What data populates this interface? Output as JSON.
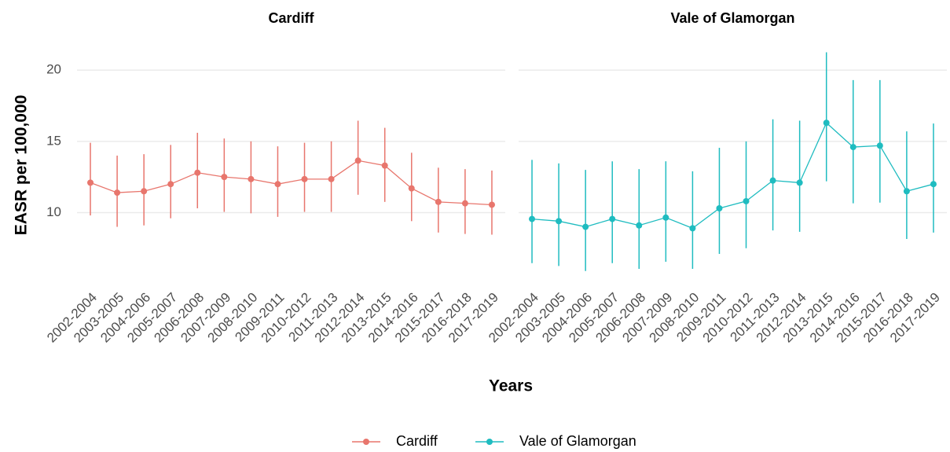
{
  "chart_data": {
    "type": "line",
    "xlabel": "Years",
    "ylabel": "EASR per 100,000",
    "categories": [
      "2002-2004",
      "2003-2005",
      "2004-2006",
      "2005-2007",
      "2006-2008",
      "2007-2009",
      "2008-2010",
      "2009-2011",
      "2010-2012",
      "2011-2013",
      "2012-2014",
      "2013-2015",
      "2014-2016",
      "2015-2017",
      "2016-2018",
      "2017-2019"
    ],
    "ylim": [
      5.5,
      21.5
    ],
    "yticks": [
      10,
      15,
      20
    ],
    "grid": true,
    "legend": "bottom",
    "series": [
      {
        "name": "Cardiff",
        "color": "#e8766d",
        "values": [
          12.1,
          11.4,
          11.5,
          12.0,
          12.8,
          12.5,
          12.35,
          12.0,
          12.35,
          12.35,
          13.65,
          13.3,
          11.7,
          10.75,
          10.65,
          10.55
        ],
        "lower": [
          9.8,
          9.0,
          9.1,
          9.6,
          10.3,
          10.05,
          9.95,
          9.7,
          10.05,
          10.05,
          11.25,
          10.75,
          9.4,
          8.6,
          8.5,
          8.45
        ],
        "upper": [
          14.9,
          14.0,
          14.1,
          14.75,
          15.6,
          15.2,
          15.0,
          14.65,
          14.9,
          15.0,
          16.45,
          15.95,
          14.2,
          13.15,
          13.05,
          12.95
        ]
      },
      {
        "name": "Vale of Glamorgan",
        "color": "#1fbcc0",
        "values": [
          9.55,
          9.4,
          9.0,
          9.55,
          9.1,
          9.65,
          8.9,
          10.3,
          10.8,
          12.25,
          12.1,
          16.3,
          14.6,
          14.7,
          11.5,
          12.0
        ],
        "lower": [
          6.45,
          6.25,
          5.9,
          6.45,
          6.05,
          6.55,
          6.05,
          7.1,
          7.5,
          8.75,
          8.65,
          12.2,
          10.65,
          10.7,
          8.15,
          8.6
        ],
        "upper": [
          13.7,
          13.45,
          13.0,
          13.6,
          13.05,
          13.6,
          12.9,
          14.55,
          15.0,
          16.55,
          16.45,
          21.25,
          19.3,
          19.3,
          15.7,
          16.25
        ]
      }
    ]
  }
}
